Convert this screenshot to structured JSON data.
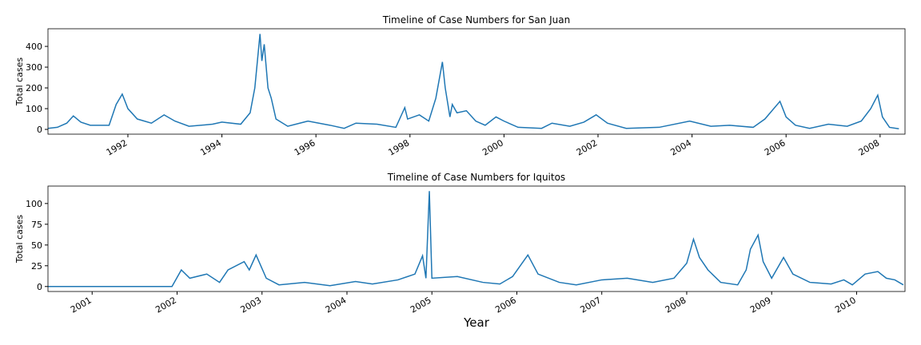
{
  "chart_data": [
    {
      "type": "line",
      "title": "Timeline of Case Numbers for San Juan",
      "ylabel": "Total cases",
      "color": "#1f77b4",
      "xlim": [
        1990.3,
        2008.53
      ],
      "ylim": [
        -23,
        485
      ],
      "xticks": [
        1992,
        1994,
        1996,
        1998,
        2000,
        2002,
        2004,
        2006,
        2008
      ],
      "yticks": [
        0,
        100,
        200,
        300,
        400
      ],
      "x": [
        1990.3,
        1990.5,
        1990.7,
        1990.84,
        1991.0,
        1991.2,
        1991.6,
        1991.75,
        1991.88,
        1992.0,
        1992.2,
        1992.5,
        1992.77,
        1993.0,
        1993.3,
        1993.8,
        1994.0,
        1994.4,
        1994.6,
        1994.7,
        1994.81,
        1994.85,
        1994.9,
        1994.98,
        1995.05,
        1995.15,
        1995.4,
        1995.83,
        1996.3,
        1996.6,
        1996.85,
        1997.3,
        1997.7,
        1997.89,
        1997.95,
        1998.2,
        1998.4,
        1998.55,
        1998.69,
        1998.75,
        1998.85,
        1998.9,
        1999.0,
        1999.2,
        1999.4,
        1999.6,
        1999.83,
        2000.0,
        2000.3,
        2000.8,
        2001.02,
        2001.4,
        2001.7,
        2001.96,
        2002.2,
        2002.6,
        2003.3,
        2003.95,
        2004.4,
        2004.8,
        2005.3,
        2005.55,
        2005.87,
        2006.0,
        2006.2,
        2006.5,
        2006.9,
        2007.3,
        2007.6,
        2007.8,
        2007.95,
        2008.05,
        2008.2,
        2008.4
      ],
      "values": [
        5,
        10,
        30,
        65,
        35,
        20,
        20,
        120,
        170,
        100,
        50,
        30,
        70,
        40,
        15,
        25,
        35,
        25,
        80,
        200,
        460,
        330,
        410,
        200,
        150,
        50,
        15,
        40,
        20,
        5,
        30,
        25,
        10,
        105,
        50,
        70,
        40,
        150,
        325,
        200,
        60,
        120,
        80,
        90,
        40,
        20,
        60,
        40,
        10,
        5,
        30,
        15,
        35,
        70,
        30,
        5,
        10,
        40,
        15,
        20,
        10,
        50,
        135,
        60,
        20,
        5,
        25,
        15,
        40,
        100,
        165,
        60,
        10,
        3
      ]
    },
    {
      "type": "line",
      "title": "Timeline of Case Numbers for Iquitos",
      "ylabel": "Total cases",
      "xlabel": "Year",
      "color": "#1f77b4",
      "xlim": [
        2000.48,
        2010.57
      ],
      "ylim": [
        -6,
        121
      ],
      "xticks": [
        2001,
        2002,
        2003,
        2004,
        2005,
        2006,
        2007,
        2008,
        2009,
        2010
      ],
      "yticks": [
        0,
        25,
        50,
        75,
        100
      ],
      "x": [
        2000.48,
        2001.0,
        2001.5,
        2001.94,
        2002.05,
        2002.15,
        2002.35,
        2002.5,
        2002.6,
        2002.79,
        2002.85,
        2002.93,
        2003.05,
        2003.2,
        2003.5,
        2003.8,
        2004.1,
        2004.3,
        2004.6,
        2004.8,
        2004.89,
        2004.93,
        2004.97,
        2005.0,
        2005.3,
        2005.6,
        2005.8,
        2005.95,
        2006.13,
        2006.25,
        2006.5,
        2006.7,
        2007.0,
        2007.3,
        2007.6,
        2007.85,
        2008.0,
        2008.08,
        2008.15,
        2008.25,
        2008.4,
        2008.6,
        2008.7,
        2008.75,
        2008.84,
        2008.9,
        2009.0,
        2009.14,
        2009.25,
        2009.45,
        2009.7,
        2009.85,
        2009.95,
        2010.1,
        2010.25,
        2010.35,
        2010.45,
        2010.55
      ],
      "values": [
        0,
        0,
        0,
        0,
        20,
        10,
        15,
        5,
        20,
        30,
        20,
        38,
        10,
        2,
        5,
        1,
        6,
        3,
        8,
        15,
        37,
        10,
        115,
        10,
        12,
        5,
        3,
        12,
        38,
        15,
        5,
        2,
        8,
        10,
        5,
        10,
        28,
        57,
        35,
        20,
        5,
        2,
        20,
        45,
        62,
        30,
        10,
        35,
        15,
        5,
        3,
        8,
        2,
        15,
        18,
        10,
        8,
        2
      ]
    }
  ]
}
